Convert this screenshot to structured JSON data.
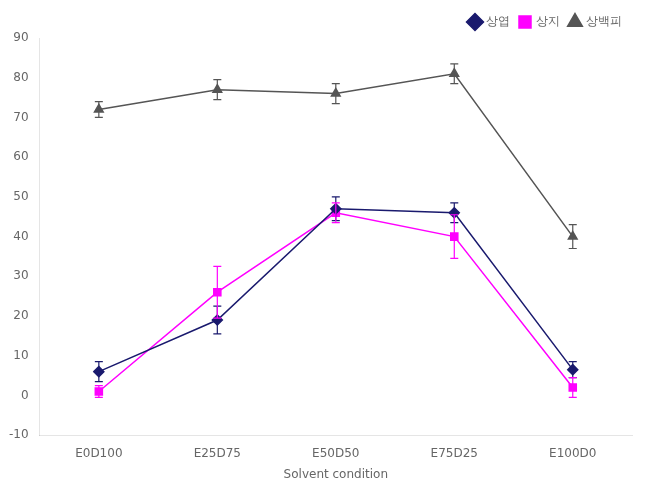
{
  "chart_data": {
    "type": "line",
    "categories": [
      "E0D100",
      "E25D75",
      "E50D50",
      "E75D25",
      "E100D0"
    ],
    "series": [
      {
        "name": "상엽",
        "color": "#1a1a6e",
        "marker": "diamond",
        "values": [
          6,
          19,
          47,
          46,
          6.5
        ],
        "errors": [
          2.5,
          3.5,
          3.0,
          2.5,
          2.0
        ]
      },
      {
        "name": "상지",
        "color": "#FF00FF",
        "marker": "square",
        "values": [
          1,
          26,
          46,
          40,
          2
        ],
        "errors": [
          1.5,
          6.5,
          2.5,
          5.5,
          2.5
        ]
      },
      {
        "name": "상백피",
        "color": "#555555",
        "marker": "triangle",
        "values": [
          72,
          77,
          76,
          81,
          40
        ],
        "errors": [
          2.0,
          2.5,
          2.5,
          2.5,
          3.0
        ]
      }
    ],
    "x_label": "Solvent condition",
    "ylim": [
      -10,
      90
    ],
    "yticks": [
      -10,
      0,
      10,
      20,
      30,
      40,
      50,
      60,
      70,
      80,
      90
    ],
    "grid": false,
    "legend": "upper right"
  }
}
